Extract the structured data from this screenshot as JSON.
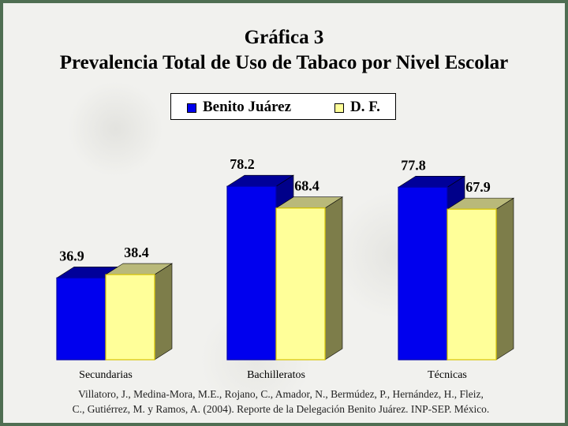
{
  "title_line1": "Gráfica 3",
  "title_line2": "Prevalencia Total de Uso de Tabaco por Nivel Escolar",
  "citation_line1": "Villatoro, J., Medina-Mora, M.E., Rojano, C., Amador, N., Bermúdez, P., Hernández, H., Fleiz,",
  "citation_line2": "C., Gutiérrez, M. y Ramos, A. (2004). Reporte de la Delegación Benito Juárez. INP-SEP. México.",
  "chart_data": {
    "type": "bar",
    "title": "Gráfica 3 Prevalencia Total de Uso de Tabaco por Nivel Escolar",
    "categories": [
      "Secundarias",
      "Bachilleratos",
      "Técnicas"
    ],
    "series": [
      {
        "name": "Benito Juárez",
        "values": [
          36.9,
          78.2,
          77.8
        ],
        "color": "#0000ee"
      },
      {
        "name": "D. F.",
        "values": [
          38.4,
          68.4,
          67.9
        ],
        "color": "#ffff99"
      }
    ],
    "xlabel": "",
    "ylabel": "",
    "ylim": [
      0,
      90
    ],
    "grid": false,
    "legend_position": "top-center",
    "style": "3d-columns"
  }
}
